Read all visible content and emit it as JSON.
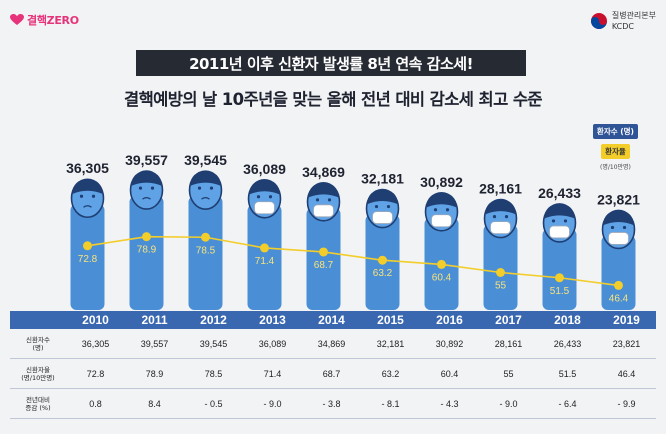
{
  "header": {
    "left_logo_text": "결핵ZERO",
    "right_logo_line1": "질병관리본부",
    "right_logo_line2": "KCDC"
  },
  "banner": "2011년 이후 신환자 발생률 8년 연속 감소세!",
  "subtitle": "결핵예방의 날 10주년을 맞는 올해 전년 대비 감소세 최고 수준",
  "legend": {
    "patients": "환자수 (명)",
    "rate": "환자율",
    "rate_unit": "(명/10만명)"
  },
  "colors": {
    "bar": "#4a8fd6",
    "line": "#f3cd2a",
    "header": "#3a68b0",
    "banner": "#262a33"
  },
  "chart_data": {
    "type": "bar",
    "categories": [
      "2010",
      "2011",
      "2012",
      "2013",
      "2014",
      "2015",
      "2016",
      "2017",
      "2018",
      "2019"
    ],
    "series": [
      {
        "name": "환자수",
        "values": [
          36305,
          39557,
          39545,
          36089,
          34869,
          32181,
          30892,
          28161,
          26433,
          23821
        ]
      },
      {
        "name": "환자율",
        "values": [
          72.8,
          78.9,
          78.5,
          71.4,
          68.7,
          63.2,
          60.4,
          55,
          51.5,
          46.4
        ]
      }
    ],
    "bar_labels": [
      "36,305",
      "39,557",
      "39,545",
      "36,089",
      "34,869",
      "32,181",
      "30,892",
      "28,161",
      "26,433",
      "23,821"
    ],
    "rate_labels": [
      "72.8",
      "78.9",
      "78.5",
      "71.4",
      "68.7",
      "63.2",
      "60.4",
      "55",
      "51.5",
      "46.4"
    ],
    "ylim": [
      0,
      42000
    ],
    "rate_lim": [
      0,
      100
    ]
  },
  "table": {
    "row_labels": [
      {
        "l1": "신환자수",
        "l2": "(명)"
      },
      {
        "l1": "신환자율",
        "l2": "(명/10만명)"
      },
      {
        "l1": "전년대비",
        "l2": "증감 (%)"
      }
    ],
    "patients": [
      "36,305",
      "39,557",
      "39,545",
      "36,089",
      "34,869",
      "32,181",
      "30,892",
      "28,161",
      "26,433",
      "23,821"
    ],
    "rates": [
      "72.8",
      "78.9",
      "78.5",
      "71.4",
      "68.7",
      "63.2",
      "60.4",
      "55",
      "51.5",
      "46.4"
    ],
    "changes": [
      "0.8",
      "8.4",
      "- 0.5",
      "- 9.0",
      "- 3.8",
      "- 8.1",
      "- 4.3",
      "- 9.0",
      "- 6.4",
      "- 9.9"
    ]
  }
}
